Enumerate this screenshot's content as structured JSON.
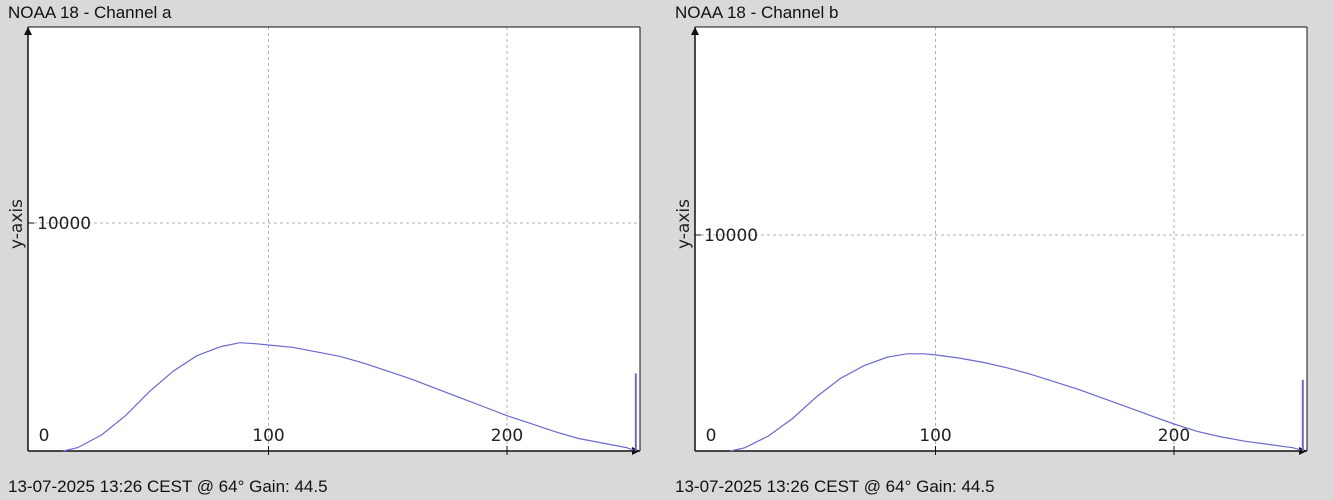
{
  "colors": {
    "background": "#d9d9d9",
    "plot_bg": "#ffffff",
    "series": "#6a6ad0",
    "grid": "#b0b0b0",
    "axis": "#111111"
  },
  "chart_data": [
    {
      "type": "line",
      "title": "NOAA 18 - Channel a",
      "footer": "13-07-2025 13:26 CEST @ 64° Gain: 44.5",
      "xlabel": "",
      "ylabel": "y-axis",
      "xlim": [
        0,
        256
      ],
      "ylim": [
        -100,
        18500
      ],
      "grid": true,
      "x_ticks": [
        {
          "value": 0,
          "label": "0",
          "grid": false
        },
        {
          "value": 100,
          "label": "100",
          "grid": true
        },
        {
          "value": 200,
          "label": "200",
          "grid": true
        }
      ],
      "y_ticks": [
        {
          "value": 10000,
          "label": "10000",
          "grid": true
        }
      ],
      "series": [
        {
          "x": [
            14,
            20,
            30,
            40,
            50,
            60,
            70,
            80,
            88,
            95,
            100,
            110,
            120,
            130,
            140,
            150,
            160,
            170,
            180,
            190,
            200,
            210,
            220,
            230,
            240,
            250,
            253
          ],
          "y": [
            0,
            150,
            700,
            1550,
            2600,
            3500,
            4180,
            4580,
            4750,
            4700,
            4650,
            4550,
            4350,
            4150,
            3850,
            3500,
            3150,
            2750,
            2350,
            1950,
            1550,
            1200,
            850,
            550,
            350,
            150,
            50
          ]
        },
        {
          "x": [
            254,
            254
          ],
          "y": [
            0,
            3400
          ]
        }
      ]
    },
    {
      "type": "line",
      "title": "NOAA 18 - Channel b",
      "footer": "13-07-2025 13:26 CEST @ 64° Gain: 44.5",
      "xlabel": "",
      "ylabel": "y-axis",
      "xlim": [
        -100,
        18500
      ],
      "x_note": "",
      "ylim": [
        -100,
        18500
      ],
      "grid": true,
      "x_ticks": [
        {
          "value": 0,
          "label": "0",
          "grid": false
        },
        {
          "value": 100,
          "label": "100",
          "grid": true
        },
        {
          "value": 200,
          "label": "200",
          "grid": true
        }
      ],
      "y_ticks": [
        {
          "value": 10000,
          "label": "10000",
          "grid": true
        }
      ],
      "series": [
        {
          "x": [
            14,
            20,
            30,
            40,
            50,
            60,
            70,
            80,
            88,
            95,
            100,
            110,
            120,
            130,
            140,
            150,
            160,
            170,
            180,
            190,
            200,
            210,
            220,
            230,
            240,
            250,
            253
          ],
          "y": [
            0,
            150,
            700,
            1500,
            2500,
            3350,
            3950,
            4350,
            4500,
            4500,
            4450,
            4300,
            4100,
            3850,
            3550,
            3200,
            2850,
            2450,
            2050,
            1650,
            1250,
            900,
            650,
            450,
            300,
            150,
            50
          ]
        },
        {
          "x": [
            254,
            254
          ],
          "y": [
            0,
            3300
          ]
        }
      ]
    }
  ]
}
